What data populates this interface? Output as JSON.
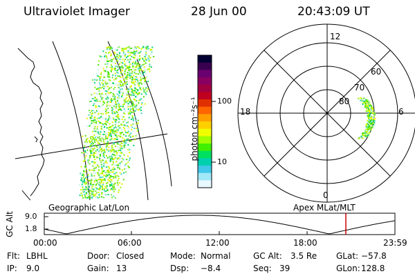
{
  "header": {
    "instrument": "Ultraviolet Imager",
    "date": "28 Jun 00",
    "time": "20:43:09 UT"
  },
  "colorbar": {
    "unit_label": "photon cm⁻²s⁻¹",
    "ticks": [
      "100",
      "10"
    ],
    "colors": [
      "#000033",
      "#3a0050",
      "#6a0070",
      "#8a0060",
      "#a00040",
      "#c00020",
      "#e03000",
      "#ff6600",
      "#ffa000",
      "#ffd000",
      "#f0ff00",
      "#a0ff00",
      "#40f000",
      "#00e060",
      "#00d0b0",
      "#40c8e8",
      "#a0e8f8",
      "#e8f8ff"
    ]
  },
  "polar": {
    "mlt_labels": [
      "12",
      "18",
      "6",
      "0"
    ],
    "lat_labels": [
      "60",
      "70",
      "80"
    ]
  },
  "map": {
    "left_label": "Geographic Lat/Lon",
    "right_label": "Apex MLat/MLT"
  },
  "altitude_plot": {
    "ylabel": "GC Alt",
    "yticks": [
      "9.0",
      "1.8"
    ],
    "xticks": [
      "00:00",
      "06:00",
      "12:00",
      "18:00",
      "23:59"
    ],
    "marker_color": "#cc0000"
  },
  "status": {
    "row1": [
      {
        "key": "Flt:",
        "val": "LBHL"
      },
      {
        "key": "Door:",
        "val": "Closed"
      },
      {
        "key": "Mode:",
        "val": "Normal"
      },
      {
        "key": "GC Alt:",
        "val": "3.5 Re"
      },
      {
        "key": "GLat:",
        "val": "−57.8"
      }
    ],
    "row2": [
      {
        "key": "IP:",
        "val": "9.0"
      },
      {
        "key": "Gain:",
        "val": "13"
      },
      {
        "key": "Dsp:",
        "val": "−8.4"
      },
      {
        "key": "Seq:",
        "val": "39"
      },
      {
        "key": "GLon:",
        "val": "128.8"
      }
    ]
  }
}
